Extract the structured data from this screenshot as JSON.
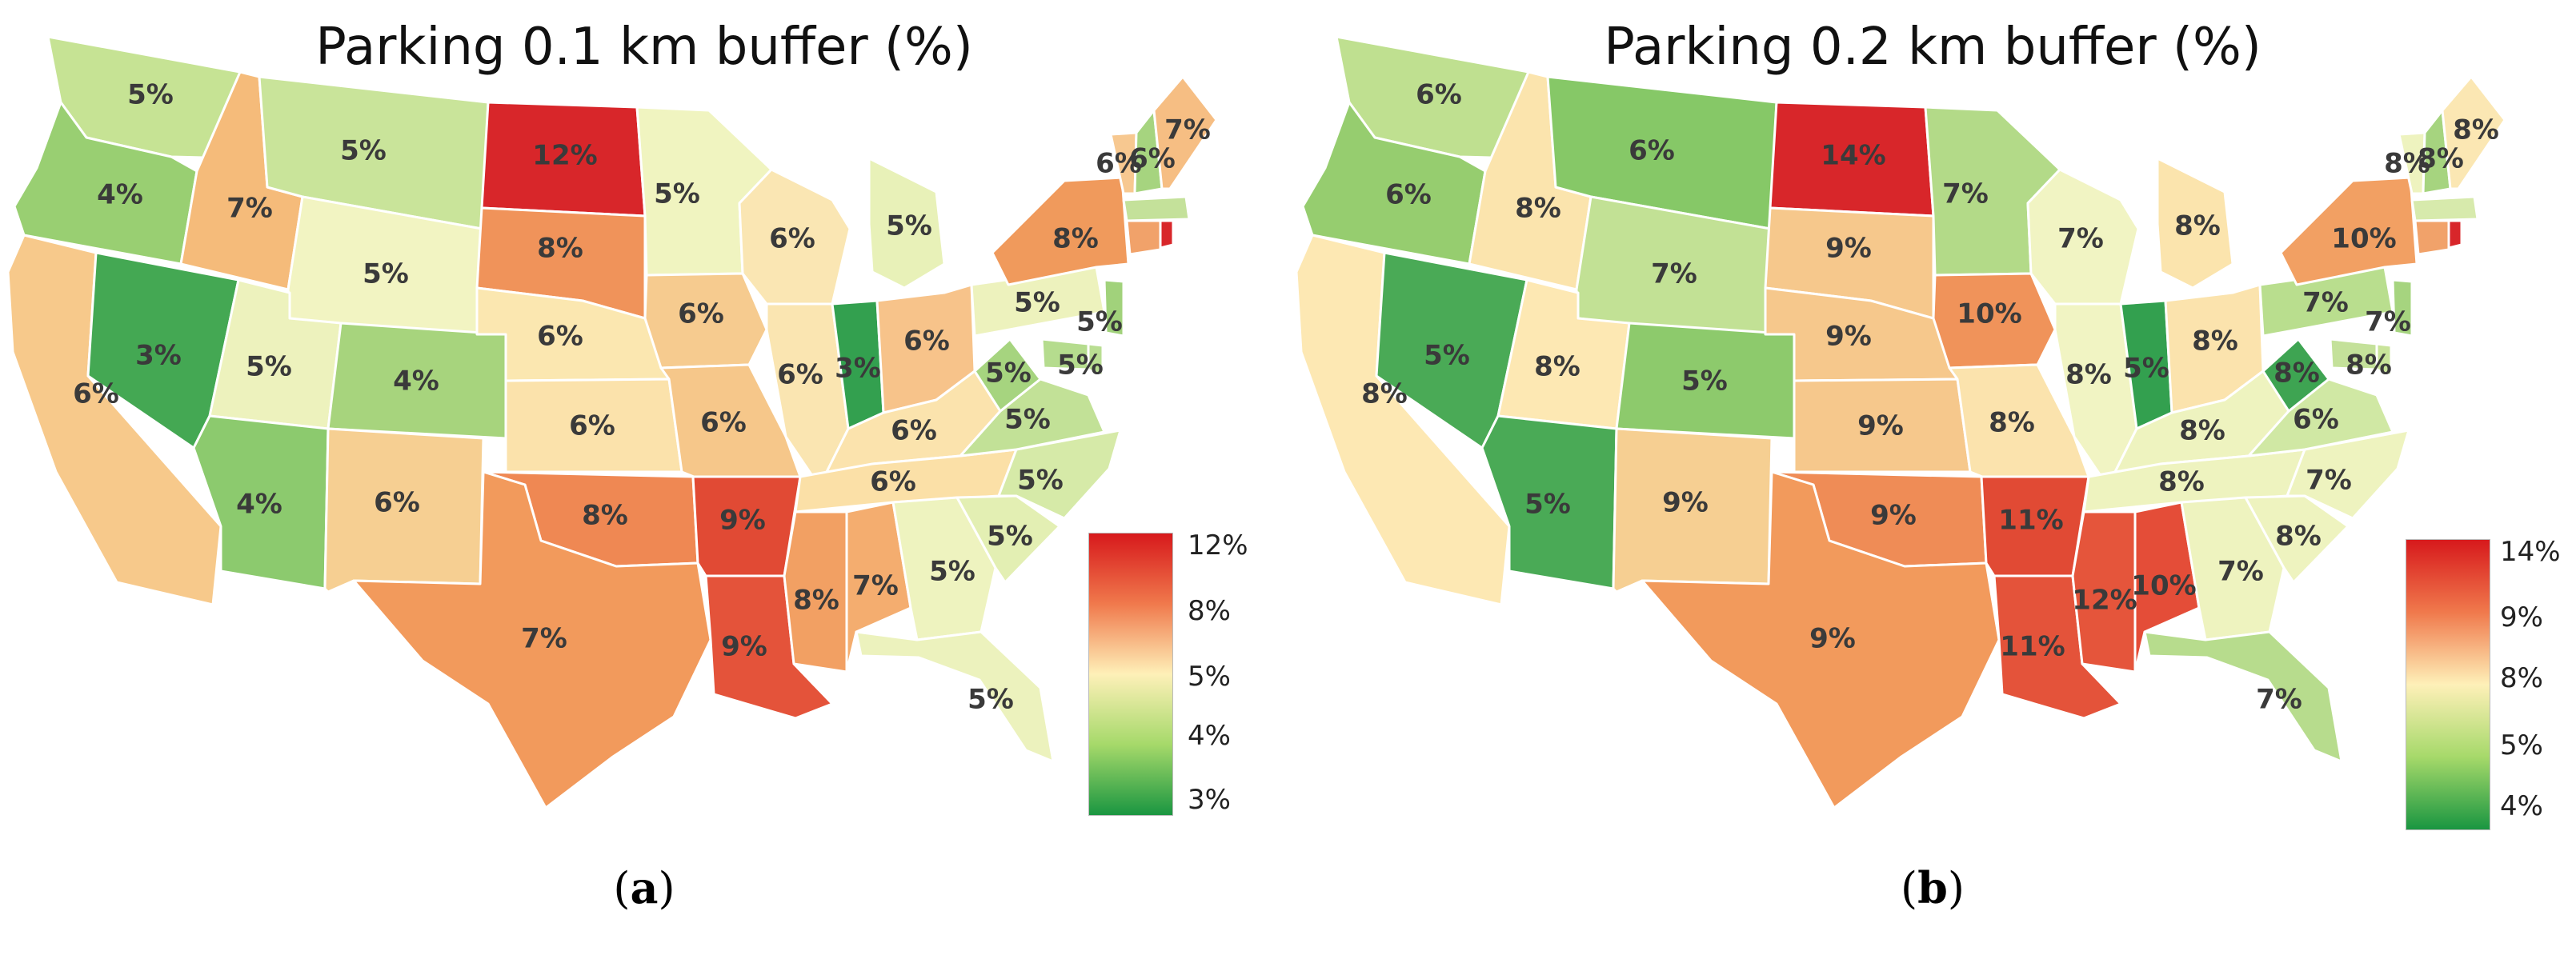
{
  "panels": [
    {
      "id": "a",
      "title": "Parking 0.1 km buffer (%)",
      "caption_letter": "a",
      "legend_ticks": [
        "12%",
        "8%",
        "5%",
        "4%",
        "3%"
      ],
      "colors": {
        "WA": "#c6e394",
        "OR": "#99cf72",
        "CA": "#f7c98b",
        "NV": "#44a853",
        "ID": "#f5bb7a",
        "MT": "#c9e49a",
        "WY": "#f2f4c2",
        "UT": "#edf2bd",
        "AZ": "#8cca6e",
        "CO": "#a7d47d",
        "NM": "#f6cf92",
        "ND": "#d8262a",
        "SD": "#f0935a",
        "NE": "#fbe7b0",
        "KS": "#fbe2ab",
        "OK": "#ef8853",
        "TX": "#f29a5c",
        "MN": "#f0f4c0",
        "IA": "#f6cb8f",
        "MO": "#f6c78a",
        "AR": "#e14a34",
        "LA": "#e4533a",
        "WI": "#fae6b3",
        "IL": "#fae5b1",
        "MI": "#e8f1b8",
        "IN": "#33a04f",
        "OH": "#f7c38a",
        "KY": "#fbe3ad",
        "TN": "#fbe0a7",
        "MS": "#f2a063",
        "AL": "#f4ad6f",
        "GA": "#eef3bf",
        "FL": "#ecf2bd",
        "SC": "#e3efb3",
        "NC": "#d6ea a8",
        "VA": "#c2e197",
        "WV": "#a6d47f",
        "PA": "#edf2bd",
        "NY": "#f09a5c",
        "VT": "#f7c890",
        "NH": "#a6d47f",
        "ME": "#f6be83",
        "MA": "#c4e19a",
        "CT": "#f1a26a",
        "RI": "#d8262a",
        "NJ": "#a1d27b",
        "DE": "#b9de92",
        "MD": "#b5dc8e"
      },
      "labels": {
        "WA": "5%",
        "OR": "4%",
        "CA": "6%",
        "NV": "3%",
        "ID": "7%",
        "MT": "5%",
        "WY": "5%",
        "UT": "5%",
        "AZ": "4%",
        "CO": "4%",
        "NM": "6%",
        "ND": "12%",
        "SD": "8%",
        "NE": "6%",
        "KS": "6%",
        "OK": "8%",
        "TX": "7%",
        "MN": "5%",
        "IA": "6%",
        "MO": "6%",
        "AR": "9%",
        "LA": "9%",
        "WI": "6%",
        "IL": "6%",
        "MI": "5%",
        "IN": "3%",
        "OH": "6%",
        "KY": "6%",
        "TN": "6%",
        "MS": "8%",
        "AL": "7%",
        "GA": "5%",
        "FL": "5%",
        "SC": "5%",
        "NC": "5%",
        "VA": "5%",
        "WV": "5%",
        "PA": "5%",
        "NY": "8%",
        "VT": "6%",
        "NH": "6%",
        "ME": "7%",
        "NJ": "5%",
        "DE": "5%"
      }
    },
    {
      "id": "b",
      "title": "Parking 0.2 km buffer (%)",
      "caption_letter": "b",
      "legend_ticks": [
        "14%",
        "9%",
        "8%",
        "5%",
        "4%"
      ],
      "colors": {
        "WA": "#bfe090",
        "OR": "#96cd6f",
        "CA": "#fde8b3",
        "NV": "#4aaa56",
        "ID": "#fbe4ad",
        "MT": "#86c867",
        "WY": "#c2e195",
        "UT": "#fde8b3",
        "AZ": "#4aaa56",
        "CO": "#8dca6c",
        "NM": "#f6cf92",
        "ND": "#d8262a",
        "SD": "#f6c88c",
        "NE": "#f6c88c",
        "KS": "#f6c88c",
        "OK": "#ef8c56",
        "TX": "#f29a5c",
        "MN": "#b3da88",
        "IA": "#f0935a",
        "MO": "#fbe3ad",
        "AR": "#e14a34",
        "LA": "#e4533a",
        "WI": "#f1f4c3",
        "IL": "#f1f4c3",
        "MI": "#fbe4ad",
        "IN": "#33a04f",
        "OH": "#fbe3ad",
        "KY": "#eef3bf",
        "TN": "#eef3bf",
        "MS": "#e5553b",
        "AL": "#e44d38",
        "GA": "#eef3bf",
        "FL": "#b7dc8d",
        "SC": "#eef3bf",
        "NC": "#eef3bf",
        "VA": "#d0e8a4",
        "WV": "#3ea452",
        "PA": "#b9de8e",
        "NY": "#f2a063",
        "VT": "#eef3bf",
        "NH": "#a6d47f",
        "ME": "#fbe7b3",
        "MA": "#d7eaac",
        "CT": "#f1a26a",
        "RI": "#d8262a",
        "NJ": "#a6d47f",
        "DE": "#c9e49a",
        "MD": "#c4e19a"
      },
      "labels": {
        "WA": "6%",
        "OR": "6%",
        "CA": "8%",
        "NV": "5%",
        "ID": "8%",
        "MT": "6%",
        "WY": "7%",
        "UT": "8%",
        "AZ": "5%",
        "CO": "5%",
        "NM": "9%",
        "ND": "14%",
        "SD": "9%",
        "NE": "9%",
        "KS": "9%",
        "OK": "9%",
        "TX": "9%",
        "MN": "7%",
        "IA": "10%",
        "MO": "8%",
        "AR": "11%",
        "LA": "11%",
        "WI": "7%",
        "IL": "8%",
        "MI": "8%",
        "IN": "5%",
        "OH": "8%",
        "KY": "8%",
        "TN": "8%",
        "MS": "12%",
        "AL": "10%",
        "GA": "7%",
        "FL": "7%",
        "SC": "8%",
        "NC": "7%",
        "VA": "6%",
        "WV": "8%",
        "PA": "7%",
        "NY": "10%",
        "VT": "8%",
        "NH": "8%",
        "ME": "8%",
        "NJ": "7%",
        "DE": "8%"
      }
    }
  ],
  "legend_colors": [
    "#d7191c",
    "#f0794c",
    "#fef0b8",
    "#a6d96a",
    "#1a9641"
  ]
}
